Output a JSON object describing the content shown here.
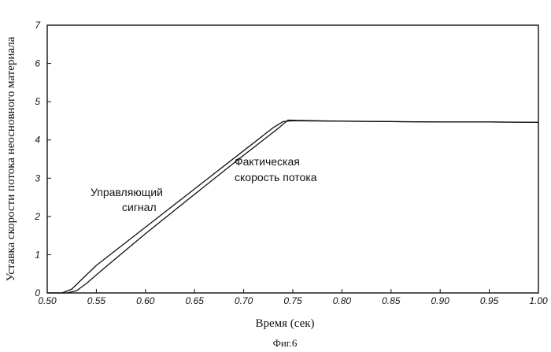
{
  "chart_data": {
    "type": "line",
    "xlabel": "Время (сек)",
    "ylabel": "Уставка скорости потока неосновного материала",
    "xlim": [
      0.5,
      1.0
    ],
    "ylim": [
      0,
      7
    ],
    "x_ticks": [
      "0.50",
      "0.55",
      "0.60",
      "0.65",
      "0.70",
      "0.75",
      "0.80",
      "0.85",
      "0.90",
      "0.95",
      "1.00"
    ],
    "y_ticks": [
      "0",
      "1",
      "2",
      "3",
      "4",
      "5",
      "6",
      "7"
    ],
    "grid": false,
    "annotations": [
      {
        "lines": [
          "Управляющий",
          "сигнал"
        ]
      },
      {
        "lines": [
          "Фактическая",
          "скорость потока"
        ]
      }
    ],
    "caption": "Фиг.6",
    "series": [
      {
        "x": [
          0.5,
          0.515,
          0.525,
          0.535,
          0.55,
          0.6,
          0.65,
          0.7,
          0.725,
          0.73,
          0.74,
          0.75,
          0.8,
          0.85,
          0.9,
          0.95,
          1.0
        ],
        "y": [
          0.0,
          0.0,
          0.1,
          0.35,
          0.72,
          1.72,
          2.72,
          3.72,
          4.22,
          4.32,
          4.48,
          4.5,
          4.49,
          4.48,
          4.47,
          4.47,
          4.46
        ]
      },
      {
        "x": [
          0.5,
          0.52,
          0.53,
          0.54,
          0.555,
          0.6,
          0.65,
          0.7,
          0.725,
          0.735,
          0.745,
          0.755,
          0.8,
          0.85,
          0.9,
          0.95,
          1.0
        ],
        "y": [
          0.0,
          0.0,
          0.06,
          0.25,
          0.58,
          1.55,
          2.58,
          3.6,
          4.1,
          4.3,
          4.52,
          4.51,
          4.49,
          4.48,
          4.47,
          4.47,
          4.46
        ]
      }
    ]
  }
}
